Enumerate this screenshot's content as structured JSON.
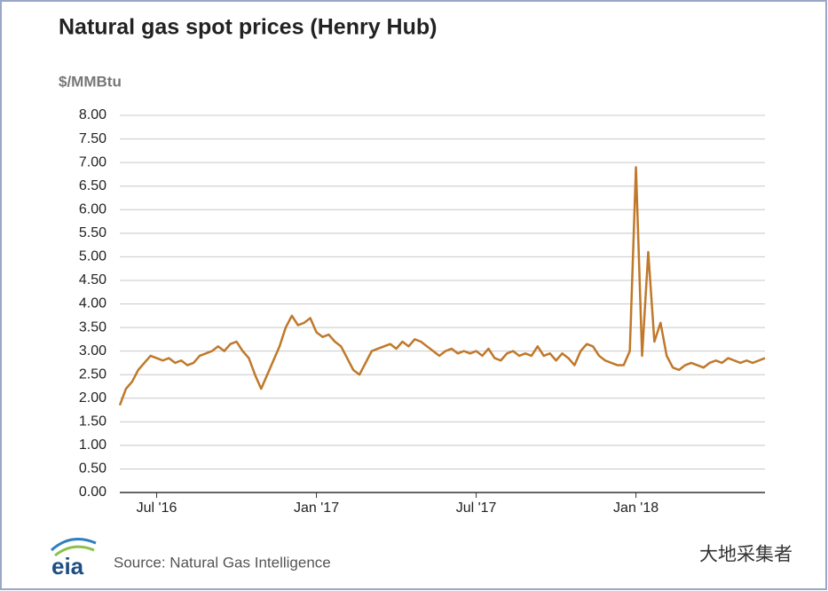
{
  "chart_data": {
    "type": "line",
    "title": "Natural gas spot prices (Henry Hub)",
    "y_axis_label": "$/MMBtu",
    "source": "Source: Natural Gas Intelligence",
    "logo": "eia",
    "watermark": "大地采集者",
    "color": "#c0782a",
    "grid": true,
    "categories": [
      null,
      null,
      null,
      null,
      null,
      null,
      "Jul '16",
      null,
      null,
      null,
      null,
      null,
      null,
      null,
      null,
      null,
      null,
      null,
      null,
      null,
      null,
      null,
      null,
      null,
      null,
      null,
      null,
      null,
      null,
      null,
      null,
      null,
      "Jan '17",
      null,
      null,
      null,
      null,
      null,
      null,
      null,
      null,
      null,
      null,
      null,
      null,
      null,
      null,
      null,
      null,
      null,
      null,
      null,
      null,
      null,
      null,
      null,
      null,
      null,
      "Jul '17",
      null,
      null,
      null,
      null,
      null,
      null,
      null,
      null,
      null,
      null,
      null,
      null,
      null,
      null,
      null,
      null,
      null,
      null,
      null,
      null,
      null,
      null,
      null,
      null,
      null,
      "Jan '18",
      null,
      null,
      null,
      null,
      null,
      null,
      null,
      null,
      null,
      null,
      null,
      null,
      null,
      null,
      null,
      null,
      null,
      null,
      null,
      null,
      null
    ],
    "values": [
      1.85,
      2.2,
      2.35,
      2.6,
      2.75,
      2.9,
      2.85,
      2.8,
      2.85,
      2.75,
      2.8,
      2.7,
      2.75,
      2.9,
      2.95,
      3.0,
      3.1,
      3.0,
      3.15,
      3.2,
      3.0,
      2.85,
      2.5,
      2.2,
      2.5,
      2.8,
      3.1,
      3.5,
      3.75,
      3.55,
      3.6,
      3.7,
      3.4,
      3.3,
      3.35,
      3.2,
      3.1,
      2.85,
      2.6,
      2.5,
      2.75,
      3.0,
      3.05,
      3.1,
      3.15,
      3.05,
      3.2,
      3.1,
      3.25,
      3.2,
      3.1,
      3.0,
      2.9,
      3.0,
      3.05,
      2.95,
      3.0,
      2.95,
      3.0,
      2.9,
      3.05,
      2.85,
      2.8,
      2.95,
      3.0,
      2.9,
      2.95,
      2.9,
      3.1,
      2.9,
      2.95,
      2.8,
      2.95,
      2.85,
      2.7,
      3.0,
      3.15,
      3.1,
      2.9,
      2.8,
      2.75,
      2.7,
      2.7,
      3.0,
      6.9,
      2.9,
      5.1,
      3.2,
      3.6,
      2.9,
      2.65,
      2.6,
      2.7,
      2.75,
      2.7,
      2.65,
      2.75,
      2.8,
      2.75,
      2.85,
      2.8,
      2.75,
      2.8,
      2.75,
      2.8,
      2.85
    ],
    "ylim": [
      0,
      8
    ],
    "yticks": [
      {
        "value": 0,
        "label": "0.00"
      },
      {
        "value": 0.5,
        "label": "0.50"
      },
      {
        "value": 1,
        "label": "1.00"
      },
      {
        "value": 1.5,
        "label": "1.50"
      },
      {
        "value": 2,
        "label": "2.00"
      },
      {
        "value": 2.5,
        "label": "2.50"
      },
      {
        "value": 3,
        "label": "3.00"
      },
      {
        "value": 3.5,
        "label": "3.50"
      },
      {
        "value": 4,
        "label": "4.00"
      },
      {
        "value": 4.5,
        "label": "4.50"
      },
      {
        "value": 5,
        "label": "5.00"
      },
      {
        "value": 5.5,
        "label": "5.50"
      },
      {
        "value": 6,
        "label": "6.00"
      },
      {
        "value": 6.5,
        "label": "6.50"
      },
      {
        "value": 7,
        "label": "7.00"
      },
      {
        "value": 7.5,
        "label": "7.50"
      },
      {
        "value": 8,
        "label": "8.00"
      }
    ]
  }
}
